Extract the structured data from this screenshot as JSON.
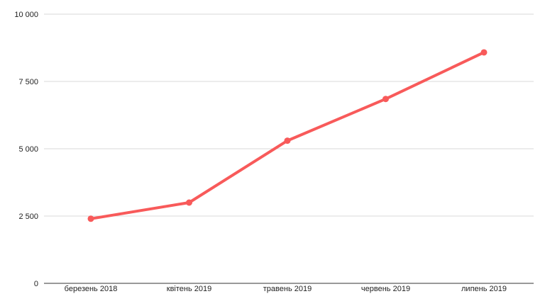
{
  "chart_data": {
    "type": "line",
    "categories": [
      "березень 2018",
      "квітень 2019",
      "травень 2019",
      "червень 2019",
      "липень 2019"
    ],
    "series": [
      {
        "values": [
          2400,
          3000,
          5300,
          6850,
          8580
        ],
        "color": "#f85a5a"
      }
    ],
    "y_ticks": [
      {
        "value": 0,
        "label": "0"
      },
      {
        "value": 2500,
        "label": "2 500"
      },
      {
        "value": 5000,
        "label": "5 000"
      },
      {
        "value": 7500,
        "label": "7 500"
      },
      {
        "value": 10000,
        "label": "10 000"
      }
    ],
    "ylim": [
      0,
      10000
    ],
    "grid": true,
    "legend": "none",
    "colors": {
      "grid": "#d9d9d9",
      "axis": "#333333",
      "line": "#f85a5a"
    }
  }
}
